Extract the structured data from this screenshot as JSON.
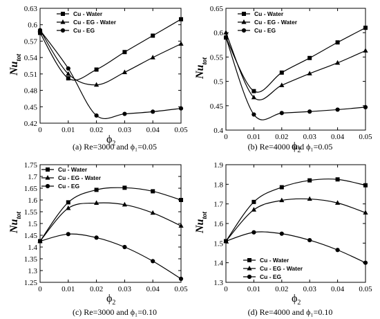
{
  "chart_data": [
    {
      "type": "line",
      "caption": "(a) Re=3000 and ϕ₁=0.05",
      "ylabel_main": "Nu",
      "ylabel_sub": "tot",
      "xlabel_main": "ϕ",
      "xlabel_sub": "2",
      "x": [
        0,
        0.01,
        0.02,
        0.03,
        0.04,
        0.05
      ],
      "xticks": [
        "0",
        "0.01",
        "0.02",
        "0.03",
        "0.04",
        "0.05"
      ],
      "xlim": [
        0,
        0.05
      ],
      "ylim": [
        0.42,
        0.63
      ],
      "yticks": [
        0.42,
        0.45,
        0.48,
        0.51,
        0.54,
        0.57,
        0.6,
        0.63
      ],
      "yticklabels": [
        "0.42",
        "0.45",
        "0.48",
        "0.51",
        "0.54",
        "0.57",
        "0.6",
        "0.63"
      ],
      "legend_position": "top-left",
      "series": [
        {
          "name": "Cu - Water",
          "marker": "square",
          "values": [
            0.585,
            0.502,
            0.518,
            0.55,
            0.58,
            0.61
          ]
        },
        {
          "name": "Cu - EG - Water",
          "marker": "triangle",
          "values": [
            0.59,
            0.51,
            0.49,
            0.513,
            0.54,
            0.565
          ]
        },
        {
          "name": "Cu - EG",
          "marker": "circle",
          "values": [
            0.59,
            0.52,
            0.434,
            0.437,
            0.441,
            0.447
          ]
        }
      ]
    },
    {
      "type": "line",
      "caption": "(b) Re=4000 and ϕ₁=0.05",
      "ylabel_main": "Nu",
      "ylabel_sub": "tot",
      "xlabel_main": "ϕ",
      "xlabel_sub": "2",
      "x": [
        0,
        0.01,
        0.02,
        0.03,
        0.04,
        0.05
      ],
      "xticks": [
        "0",
        "0.01",
        "0.02",
        "0.03",
        "0.04",
        "0.05"
      ],
      "xlim": [
        0,
        0.05
      ],
      "ylim": [
        0.4,
        0.65
      ],
      "yticks": [
        0.4,
        0.45,
        0.5,
        0.55,
        0.6,
        0.65
      ],
      "yticklabels": [
        "0.4",
        "0.45",
        "0.5",
        "0.55",
        "0.6",
        "0.65"
      ],
      "legend_position": "top-left",
      "series": [
        {
          "name": "Cu - Water",
          "marker": "square",
          "values": [
            0.59,
            0.48,
            0.518,
            0.548,
            0.58,
            0.61
          ]
        },
        {
          "name": "Cu - EG - Water",
          "marker": "triangle",
          "values": [
            0.6,
            0.467,
            0.492,
            0.516,
            0.538,
            0.563
          ]
        },
        {
          "name": "Cu - EG",
          "marker": "circle",
          "values": [
            0.59,
            0.432,
            0.435,
            0.438,
            0.442,
            0.447
          ]
        }
      ]
    },
    {
      "type": "line",
      "caption": "(c) Re=3000 and ϕ₁=0.10",
      "ylabel_main": "Nu",
      "ylabel_sub": "tot",
      "xlabel_main": "ϕ",
      "xlabel_sub": "2",
      "x": [
        0,
        0.01,
        0.02,
        0.03,
        0.04,
        0.05
      ],
      "xticks": [
        "0",
        "0.01",
        "0.02",
        "0.03",
        "0.04",
        "0.05"
      ],
      "xlim": [
        0,
        0.05
      ],
      "ylim": [
        1.25,
        1.75
      ],
      "yticks": [
        1.25,
        1.3,
        1.35,
        1.4,
        1.45,
        1.5,
        1.55,
        1.6,
        1.65,
        1.7,
        1.75
      ],
      "yticklabels": [
        "1.25",
        "1.3",
        "1.35",
        "1.4",
        "1.45",
        "1.5",
        "1.55",
        "1.6",
        "1.65",
        "1.7",
        "1.75"
      ],
      "legend_position": "top-left",
      "series": [
        {
          "name": "Cu - Water",
          "marker": "square",
          "values": [
            1.425,
            1.59,
            1.643,
            1.652,
            1.637,
            1.6
          ]
        },
        {
          "name": "Cu - EG - Water",
          "marker": "triangle",
          "values": [
            1.425,
            1.565,
            1.587,
            1.58,
            1.545,
            1.49
          ]
        },
        {
          "name": "Cu - EG",
          "marker": "circle",
          "values": [
            1.425,
            1.455,
            1.44,
            1.4,
            1.34,
            1.265
          ]
        }
      ]
    },
    {
      "type": "line",
      "caption": "(d) Re=4000 and ϕ₁=0.10",
      "ylabel_main": "Nu",
      "ylabel_sub": "tot",
      "xlabel_main": "ϕ",
      "xlabel_sub": "2",
      "x": [
        0,
        0.01,
        0.02,
        0.03,
        0.04,
        0.05
      ],
      "xticks": [
        "0",
        "0.01",
        "0.02",
        "0.03",
        "0.04",
        "0.05"
      ],
      "xlim": [
        0,
        0.05
      ],
      "ylim": [
        1.3,
        1.9
      ],
      "yticks": [
        1.3,
        1.4,
        1.5,
        1.6,
        1.7,
        1.8,
        1.9
      ],
      "yticklabels": [
        "1.3",
        "1.4",
        "1.5",
        "1.6",
        "1.7",
        "1.8",
        "1.9"
      ],
      "legend_position": "bottom-left",
      "series": [
        {
          "name": "Cu - Water",
          "marker": "square",
          "values": [
            1.51,
            1.71,
            1.785,
            1.82,
            1.825,
            1.795
          ]
        },
        {
          "name": "Cu - EG - Water",
          "marker": "triangle",
          "values": [
            1.51,
            1.67,
            1.718,
            1.725,
            1.705,
            1.655
          ]
        },
        {
          "name": "Cu - EG",
          "marker": "circle",
          "values": [
            1.51,
            1.555,
            1.548,
            1.515,
            1.465,
            1.4
          ]
        }
      ]
    }
  ]
}
